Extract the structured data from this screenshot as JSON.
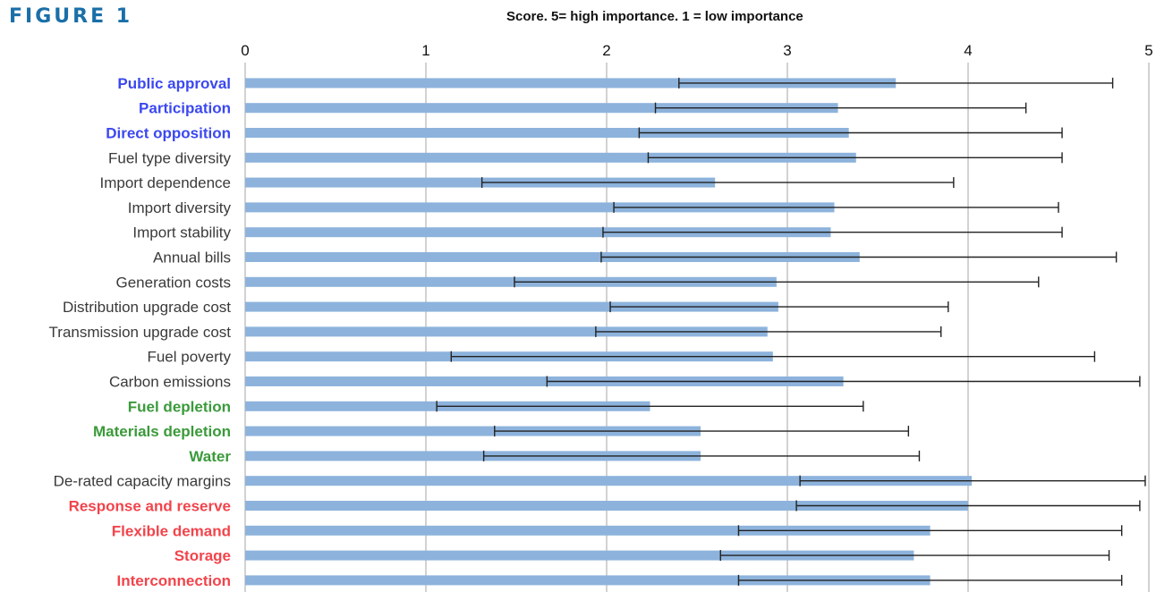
{
  "figure_label": "FIGURE 1",
  "chart_data": {
    "type": "bar",
    "orientation": "horizontal",
    "title": "Score. 5= high importance. 1 = low importance",
    "xlim": [
      0,
      5
    ],
    "x_ticks": [
      0,
      1,
      2,
      3,
      4,
      5
    ],
    "grid": "vertical",
    "bar_color": "#8db3dc",
    "error_bar_color": "#222222",
    "category_colors": {
      "blue": "#3b48f0",
      "dark": "#3a3a3a",
      "green": "#3a9a3a",
      "red": "#f2444b"
    },
    "categories": [
      {
        "label": "Public approval",
        "color": "blue",
        "value": 3.6,
        "err_low": 2.4,
        "err_high": 4.8
      },
      {
        "label": "Participation",
        "color": "blue",
        "value": 3.28,
        "err_low": 2.27,
        "err_high": 4.32
      },
      {
        "label": "Direct opposition",
        "color": "blue",
        "value": 3.34,
        "err_low": 2.18,
        "err_high": 4.52
      },
      {
        "label": "Fuel type diversity",
        "color": "dark",
        "value": 3.38,
        "err_low": 2.23,
        "err_high": 4.52
      },
      {
        "label": "Import dependence",
        "color": "dark",
        "value": 2.6,
        "err_low": 1.31,
        "err_high": 3.92
      },
      {
        "label": "Import diversity",
        "color": "dark",
        "value": 3.26,
        "err_low": 2.04,
        "err_high": 4.5
      },
      {
        "label": "Import stability",
        "color": "dark",
        "value": 3.24,
        "err_low": 1.98,
        "err_high": 4.52
      },
      {
        "label": "Annual bills",
        "color": "dark",
        "value": 3.4,
        "err_low": 1.97,
        "err_high": 4.82
      },
      {
        "label": "Generation costs",
        "color": "dark",
        "value": 2.94,
        "err_low": 1.49,
        "err_high": 4.39
      },
      {
        "label": "Distribution upgrade cost",
        "color": "dark",
        "value": 2.95,
        "err_low": 2.02,
        "err_high": 3.89
      },
      {
        "label": "Transmission upgrade cost",
        "color": "dark",
        "value": 2.89,
        "err_low": 1.94,
        "err_high": 3.85
      },
      {
        "label": "Fuel poverty",
        "color": "dark",
        "value": 2.92,
        "err_low": 1.14,
        "err_high": 4.7
      },
      {
        "label": "Carbon emissions",
        "color": "dark",
        "value": 3.31,
        "err_low": 1.67,
        "err_high": 4.95
      },
      {
        "label": "Fuel depletion",
        "color": "green",
        "value": 2.24,
        "err_low": 1.06,
        "err_high": 3.42
      },
      {
        "label": "Materials depletion",
        "color": "green",
        "value": 2.52,
        "err_low": 1.38,
        "err_high": 3.67
      },
      {
        "label": "Water",
        "color": "green",
        "value": 2.52,
        "err_low": 1.32,
        "err_high": 3.73
      },
      {
        "label": "De-rated capacity margins",
        "color": "dark",
        "value": 4.02,
        "err_low": 3.07,
        "err_high": 4.98
      },
      {
        "label": "Response and reserve",
        "color": "red",
        "value": 4.0,
        "err_low": 3.05,
        "err_high": 4.95
      },
      {
        "label": "Flexible demand",
        "color": "red",
        "value": 3.79,
        "err_low": 2.73,
        "err_high": 4.85
      },
      {
        "label": "Storage",
        "color": "red",
        "value": 3.7,
        "err_low": 2.63,
        "err_high": 4.78
      },
      {
        "label": "Interconnection",
        "color": "red",
        "value": 3.79,
        "err_low": 2.73,
        "err_high": 4.85
      }
    ]
  }
}
